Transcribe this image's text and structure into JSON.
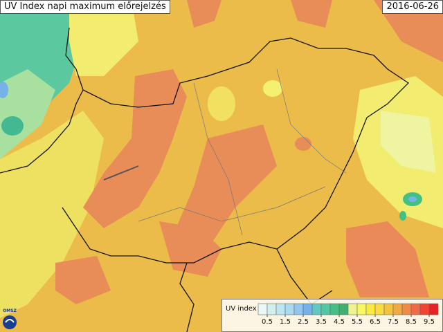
{
  "header": {
    "title": "UV Index napi maximum előrejelzés",
    "date": "2016-06-26"
  },
  "logo": {
    "text": "OMSZ"
  },
  "legend": {
    "title": "UV index",
    "range": [
      0,
      10
    ],
    "ticks": [
      0.5,
      1.5,
      2.5,
      3.5,
      4.5,
      5.5,
      6.5,
      7.5,
      8.5,
      9.5
    ],
    "colors": [
      "#eaf8f6",
      "#d2f0f0",
      "#bce6f0",
      "#a8daf0",
      "#90c6f0",
      "#74b2e8",
      "#62c8c0",
      "#52c8a2",
      "#44c084",
      "#40b070",
      "#f0f490",
      "#f8f860",
      "#f8ec44",
      "#f8dc40",
      "#f2c440",
      "#f0aa42",
      "#f08a48",
      "#f06a44",
      "#f04434",
      "#e82222"
    ]
  }
}
